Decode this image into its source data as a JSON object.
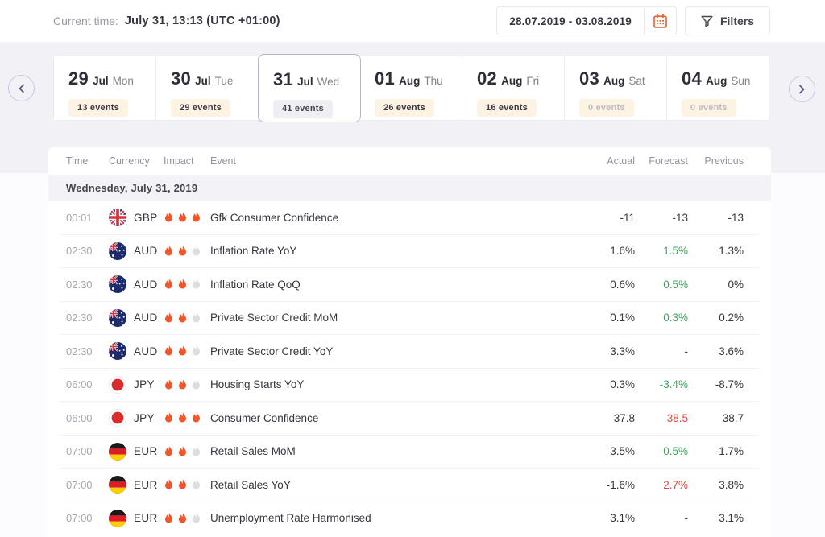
{
  "header": {
    "current_time_label": "Current time:",
    "current_time_value": "July 31, 13:13 (UTC +01:00)",
    "date_range": "28.07.2019 - 03.08.2019",
    "filters_label": "Filters"
  },
  "day_carousel": {
    "days": [
      {
        "day": "29",
        "month": "Jul",
        "weekday": "Mon",
        "events_label": "13 events",
        "selected": false,
        "zero_events": false
      },
      {
        "day": "30",
        "month": "Jul",
        "weekday": "Tue",
        "events_label": "29 events",
        "selected": false,
        "zero_events": false
      },
      {
        "day": "31",
        "month": "Jul",
        "weekday": "Wed",
        "events_label": "41 events",
        "selected": true,
        "zero_events": false
      },
      {
        "day": "01",
        "month": "Aug",
        "weekday": "Thu",
        "events_label": "26 events",
        "selected": false,
        "zero_events": false
      },
      {
        "day": "02",
        "month": "Aug",
        "weekday": "Fri",
        "events_label": "16 events",
        "selected": false,
        "zero_events": false
      },
      {
        "day": "03",
        "month": "Aug",
        "weekday": "Sat",
        "events_label": "0 events",
        "selected": false,
        "zero_events": true
      },
      {
        "day": "04",
        "month": "Aug",
        "weekday": "Sun",
        "events_label": "0 events",
        "selected": false,
        "zero_events": true
      }
    ]
  },
  "table": {
    "columns": {
      "time": "Time",
      "currency": "Currency",
      "impact": "Impact",
      "event": "Event",
      "actual": "Actual",
      "forecast": "Forecast",
      "previous": "Previous"
    },
    "group_date": "Wednesday, July 31, 2019",
    "rows": [
      {
        "time": "00:01",
        "currency": "GBP",
        "flag": "uk-flag",
        "impact": 3,
        "event": "Gfk Consumer Confidence",
        "actual": "-11",
        "forecast": "-13",
        "forecast_color": "dark",
        "previous": "-13"
      },
      {
        "time": "02:30",
        "currency": "AUD",
        "flag": "australia-flag",
        "impact": 2,
        "event": "Inflation Rate YoY",
        "actual": "1.6%",
        "forecast": "1.5%",
        "forecast_color": "green",
        "previous": "1.3%"
      },
      {
        "time": "02:30",
        "currency": "AUD",
        "flag": "australia-flag",
        "impact": 2,
        "event": "Inflation Rate QoQ",
        "actual": "0.6%",
        "forecast": "0.5%",
        "forecast_color": "green",
        "previous": "0%"
      },
      {
        "time": "02:30",
        "currency": "AUD",
        "flag": "australia-flag",
        "impact": 2,
        "event": "Private Sector Credit MoM",
        "actual": "0.1%",
        "forecast": "0.3%",
        "forecast_color": "green",
        "previous": "0.2%"
      },
      {
        "time": "02:30",
        "currency": "AUD",
        "flag": "australia-flag",
        "impact": 2,
        "event": "Private Sector Credit YoY",
        "actual": "3.3%",
        "forecast": "-",
        "forecast_color": "dark",
        "previous": "3.6%"
      },
      {
        "time": "06:00",
        "currency": "JPY",
        "flag": "japan-flag",
        "impact": 2,
        "event": "Housing Starts YoY",
        "actual": "0.3%",
        "forecast": "-3.4%",
        "forecast_color": "green",
        "previous": "-8.7%"
      },
      {
        "time": "06:00",
        "currency": "JPY",
        "flag": "japan-flag",
        "impact": 3,
        "event": "Consumer Confidence",
        "actual": "37.8",
        "forecast": "38.5",
        "forecast_color": "red",
        "previous": "38.7"
      },
      {
        "time": "07:00",
        "currency": "EUR",
        "flag": "germany-flag",
        "impact": 2,
        "event": "Retail Sales MoM",
        "actual": "3.5%",
        "forecast": "0.5%",
        "forecast_color": "green",
        "previous": "-1.7%"
      },
      {
        "time": "07:00",
        "currency": "EUR",
        "flag": "germany-flag",
        "impact": 2,
        "event": "Retail Sales YoY",
        "actual": "-1.6%",
        "forecast": "2.7%",
        "forecast_color": "red",
        "previous": "3.8%"
      },
      {
        "time": "07:00",
        "currency": "EUR",
        "flag": "germany-flag",
        "impact": 2,
        "event": "Unemployment Rate Harmonised",
        "actual": "3.1%",
        "forecast": "-",
        "forecast_color": "dark",
        "previous": "3.1%"
      }
    ]
  },
  "colors": {
    "accent_orange": "#f2552c",
    "positive_green": "#3da55c",
    "negative_red": "#e0493f",
    "selected_day_border": "#b5b3d6",
    "badge_cream": "#fdf3e2",
    "background_gray": "#f2f1f6"
  }
}
